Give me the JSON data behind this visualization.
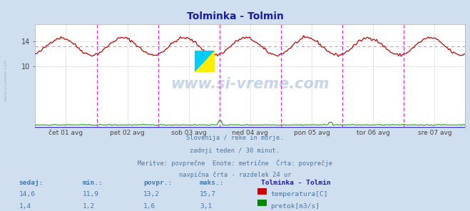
{
  "title": "Tolminka - Tolmin",
  "title_color": "#1a1aaa",
  "bg_color": "#d0dff0",
  "plot_bg_color": "#ffffff",
  "grid_color": "#dddddd",
  "x_labels": [
    "čet 01 avg",
    "pet 02 avg",
    "sob 03 avg",
    "ned 04 avg",
    "pon 05 avg",
    "tor 06 avg",
    "sre 07 avg"
  ],
  "y_ticks": [
    10,
    14
  ],
  "y_min": 0,
  "y_max": 16.8,
  "temp_color": "#cc0000",
  "pretok_color": "#00aa00",
  "avg_line_color": "#ff8888",
  "avg_line_value": 13.2,
  "vline_color": "#ee00ee",
  "watermark_text": "www.si-vreme.com",
  "watermark_color": "#4477bb",
  "watermark_alpha": 0.3,
  "subtitle_lines": [
    "Slovenija / reke in morje.",
    "zadnji teden / 30 minut.",
    "Meritve: povprečne  Enote: metrične  Črta: povprečje",
    "navpična črta - razdelek 24 ur"
  ],
  "subtitle_color": "#4477aa",
  "table_header": [
    "sedaj:",
    "min.:",
    "povpr.:",
    "maks.:"
  ],
  "table_col_header": "Tolminka - Tolmin",
  "table_rows": [
    [
      "14,6",
      "11,9",
      "13,2",
      "15,7",
      "temperatura[C]",
      "#cc0000"
    ],
    [
      "1,4",
      "1,2",
      "1,6",
      "3,1",
      "pretok[m3/s]",
      "#008800"
    ]
  ],
  "n_points": 336,
  "temp_mean": 13.2,
  "temp_amplitude": 1.4,
  "pretok_mean": 1.55,
  "pretok_noise": 0.08,
  "sidebar_text": "www.si-vreme.com",
  "sidebar_color": "#8899bb"
}
